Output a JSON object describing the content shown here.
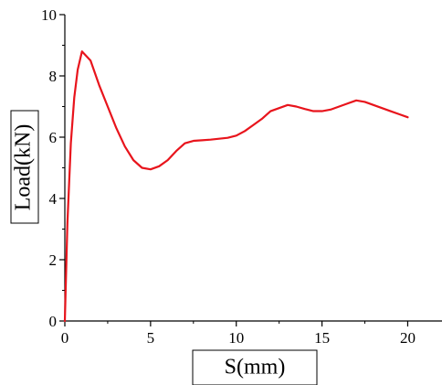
{
  "chart_data": {
    "type": "line",
    "xlabel": "S(mm)",
    "ylabel": "Load(kN)",
    "xlim": [
      0,
      22
    ],
    "ylim": [
      0,
      10
    ],
    "x_ticks": [
      0,
      5,
      10,
      15,
      20
    ],
    "y_ticks": [
      0,
      2,
      4,
      6,
      8,
      10
    ],
    "grid": false,
    "legend": "none",
    "series": [
      {
        "color": "#e8141c",
        "x": [
          0,
          0.15,
          0.35,
          0.55,
          0.75,
          1.0,
          1.5,
          2.0,
          2.5,
          3.0,
          3.5,
          4.0,
          4.5,
          5.0,
          5.5,
          6.0,
          6.5,
          7.0,
          7.5,
          8.0,
          8.5,
          9.0,
          9.5,
          10.0,
          10.5,
          11.0,
          11.5,
          12.0,
          12.5,
          13.0,
          13.5,
          14.0,
          14.5,
          15.0,
          15.5,
          16.0,
          16.5,
          17.0,
          17.5,
          18.0,
          18.5,
          19.0,
          19.5,
          20.0
        ],
        "y": [
          0,
          3.2,
          5.8,
          7.3,
          8.2,
          8.8,
          8.5,
          7.7,
          7.0,
          6.3,
          5.7,
          5.25,
          5.0,
          4.95,
          5.05,
          5.25,
          5.55,
          5.8,
          5.88,
          5.9,
          5.92,
          5.95,
          5.98,
          6.05,
          6.2,
          6.4,
          6.6,
          6.85,
          6.95,
          7.05,
          7.0,
          6.92,
          6.85,
          6.85,
          6.9,
          7.0,
          7.1,
          7.2,
          7.15,
          7.05,
          6.95,
          6.85,
          6.75,
          6.65
        ]
      }
    ]
  }
}
